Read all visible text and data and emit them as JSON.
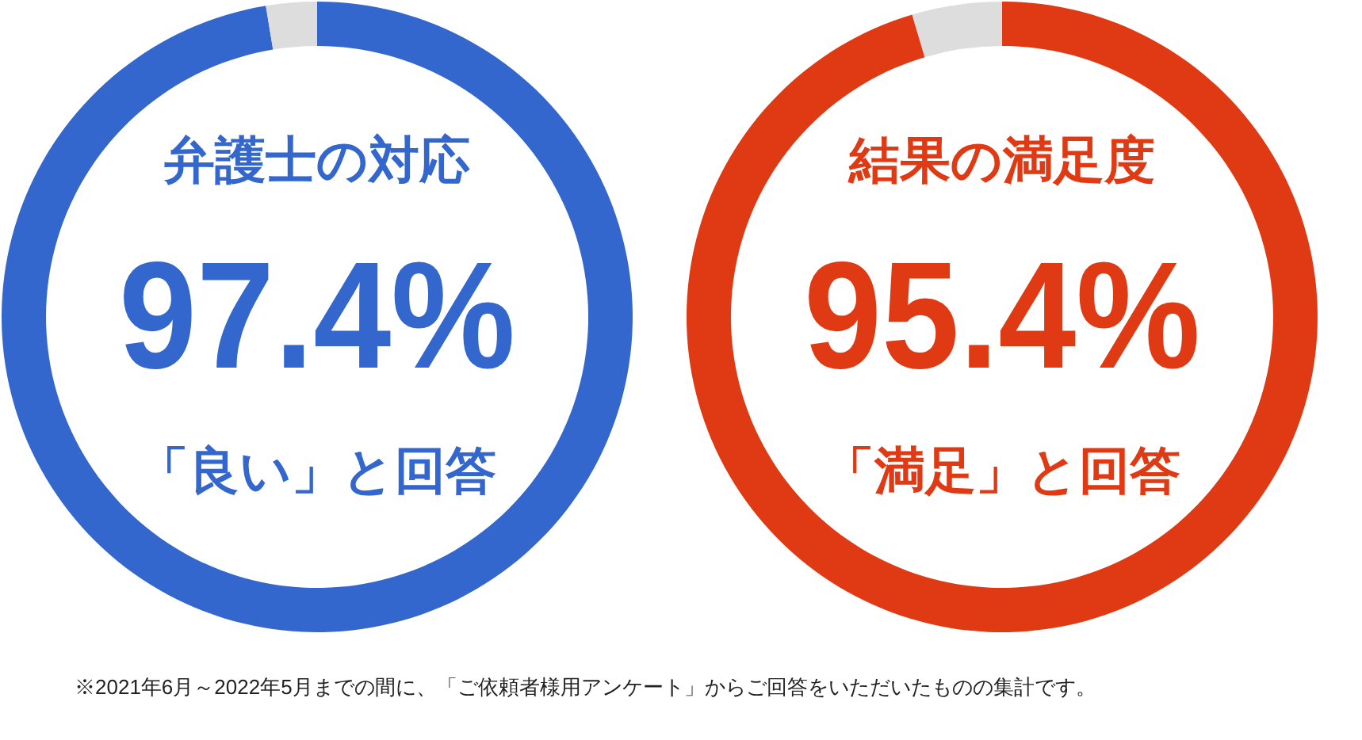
{
  "chart_data": [
    {
      "type": "donut",
      "title": "弁護士の対応",
      "subtitle": "「良い」と回答",
      "categories": [
        null,
        null
      ],
      "values": [
        97.4,
        2.6
      ],
      "colors": [
        "#3367cd",
        "#dddddd"
      ],
      "value_labels": [
        "97.4%",
        null
      ],
      "annotations": [
        "※2021年6月～2022年5月までの間に、「ご依頼者様用アンケート」からご回答をいただいたものの集計です。"
      ]
    },
    {
      "type": "donut",
      "title": "結果の満足度",
      "subtitle": "「満足」と回答",
      "categories": [
        null,
        null
      ],
      "values": [
        95.4,
        4.6
      ],
      "colors": [
        "#e03a14",
        "#dddddd"
      ],
      "value_labels": [
        "95.4%",
        null
      ]
    }
  ]
}
